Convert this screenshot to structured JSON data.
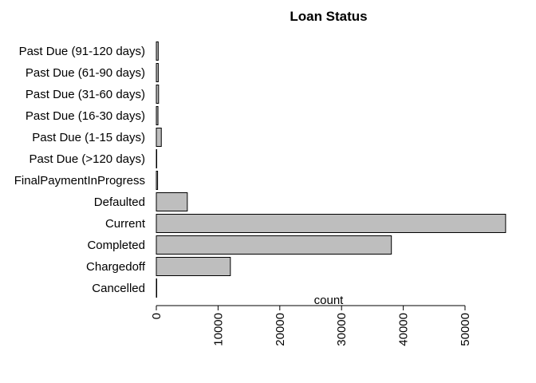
{
  "chart_data": {
    "type": "bar",
    "orientation": "horizontal",
    "title": "Loan Status",
    "xlabel": "count",
    "ylabel": "",
    "xlim": [
      0,
      57000
    ],
    "x_ticks": [
      0,
      10000,
      20000,
      30000,
      40000,
      50000
    ],
    "x_tick_labels": [
      "0",
      "10000",
      "20000",
      "30000",
      "40000",
      "50000"
    ],
    "grid": false,
    "legend": "none",
    "bar_color": "#bebebe",
    "edge_color": "#000000",
    "categories": [
      "Cancelled",
      "Chargedoff",
      "Completed",
      "Current",
      "Defaulted",
      "FinalPaymentInProgress",
      "Past Due (>120 days)",
      "Past Due (1-15 days)",
      "Past Due (16-30 days)",
      "Past Due (31-60 days)",
      "Past Due (61-90 days)",
      "Past Due (91-120 days)"
    ],
    "values": [
      5,
      11992,
      38074,
      56576,
      5018,
      205,
      16,
      806,
      265,
      363,
      313,
      304
    ]
  }
}
